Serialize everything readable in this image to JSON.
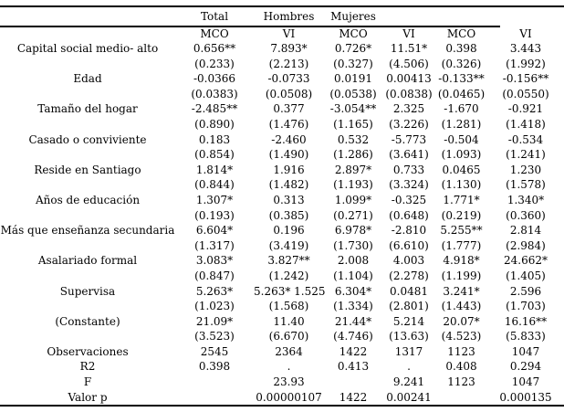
{
  "colors": {
    "text": "#000000",
    "background": "#ffffff",
    "rule": "#000000"
  },
  "table": {
    "group_headers": [
      "Total",
      "Hombres",
      "Mujeres"
    ],
    "sub_headers": [
      "MCO",
      "VI",
      "MCO",
      "VI",
      "MCO",
      "VI"
    ],
    "rows": [
      {
        "label": "Capital social medio- alto",
        "cells": [
          "0.656**",
          "7.893*",
          "0.726*",
          "11.51*",
          "0.398",
          "3.443"
        ],
        "se": [
          "(0.233)",
          "(2.213)",
          "(0.327)",
          "(4.506)",
          "(0.326)",
          "(1.992)"
        ]
      },
      {
        "label": "Edad",
        "cells": [
          "-0.0366",
          "-0.0733",
          "0.0191",
          "0.00413",
          "-0.133**",
          "-0.156**"
        ],
        "se": [
          "(0.0383)",
          "(0.0508)",
          "(0.0538)",
          "(0.0838)",
          "(0.0465)",
          "(0.0550)"
        ]
      },
      {
        "label": "Tamaño del hogar",
        "cells": [
          "-2.485**",
          "0.377",
          "-3.054**",
          "2.325",
          "-1.670",
          "-0.921"
        ],
        "se": [
          "(0.890)",
          "(1.476)",
          "(1.165)",
          "(3.226)",
          "(1.281)",
          "(1.418)"
        ]
      },
      {
        "label": "Casado o conviviente",
        "cells": [
          "0.183",
          "-2.460",
          "0.532",
          "-5.773",
          "-0.504",
          "-0.534"
        ],
        "se": [
          "(0.854)",
          "(1.490)",
          "(1.286)",
          "(3.641)",
          "(1.093)",
          "(1.241)"
        ]
      },
      {
        "label": "Reside en Santiago",
        "cells": [
          "1.814*",
          "1.916",
          "2.897*",
          "0.733",
          "0.0465",
          "1.230"
        ],
        "se": [
          "(0.844)",
          "(1.482)",
          "(1.193)",
          "(3.324)",
          "(1.130)",
          "(1.578)"
        ]
      },
      {
        "label": "Años de educación",
        "cells": [
          "1.307*",
          "0.313",
          "1.099*",
          "-0.325",
          "1.771*",
          "1.340*"
        ],
        "se": [
          "(0.193)",
          "(0.385)",
          "(0.271)",
          "(0.648)",
          "(0.219)",
          "(0.360)"
        ]
      },
      {
        "label": "Más que enseñanza secundaria",
        "cells": [
          "6.604*",
          "0.196",
          "6.978*",
          "-2.810",
          "5.255**",
          "2.814"
        ],
        "se": [
          "(1.317)",
          "(3.419)",
          "(1.730)",
          "(6.610)",
          "(1.777)",
          "(2.984)"
        ]
      },
      {
        "label": "Asalariado formal",
        "cells": [
          "3.083*",
          "3.827**",
          "2.008",
          "4.003",
          "4.918*",
          "24.662*"
        ],
        "se": [
          "(0.847)",
          "(1.242)",
          "(1.104)",
          "(2.278)",
          "(1.199)",
          "(1.405)"
        ]
      },
      {
        "label": "Supervisa",
        "cells": [
          "5.263*",
          "5.263* 1.525",
          "6.304*",
          "0.0481",
          "3.241*",
          "2.596"
        ],
        "se": [
          "(1.023)",
          "(1.568)",
          "(1.334)",
          "(2.801)",
          "(1.443)",
          "(1.703)"
        ]
      },
      {
        "label": "(Constante)",
        "cells": [
          "21.09*",
          "11.40",
          "21.44*",
          "5.214",
          "20.07*",
          "16.16**"
        ],
        "se": [
          "(3.523)",
          "(6.670)",
          "(4.746)",
          "(13.63)",
          "(4.523)",
          "(5.833)"
        ]
      }
    ],
    "stats": [
      {
        "label": "Observaciones",
        "cells": [
          "2545",
          "2364",
          "1422",
          "1317",
          "1123",
          "1047"
        ]
      },
      {
        "label": "R2",
        "cells": [
          "0.398",
          ".",
          "0.413",
          ".",
          "0.408",
          "0.294"
        ]
      },
      {
        "label": "F",
        "cells": [
          "",
          "23.93",
          "",
          "9.241",
          "1123",
          "1047"
        ]
      },
      {
        "label": "Valor p",
        "cells": [
          "",
          "0.00000107",
          "1422",
          "0.00241",
          "",
          "0.000135"
        ]
      }
    ]
  }
}
